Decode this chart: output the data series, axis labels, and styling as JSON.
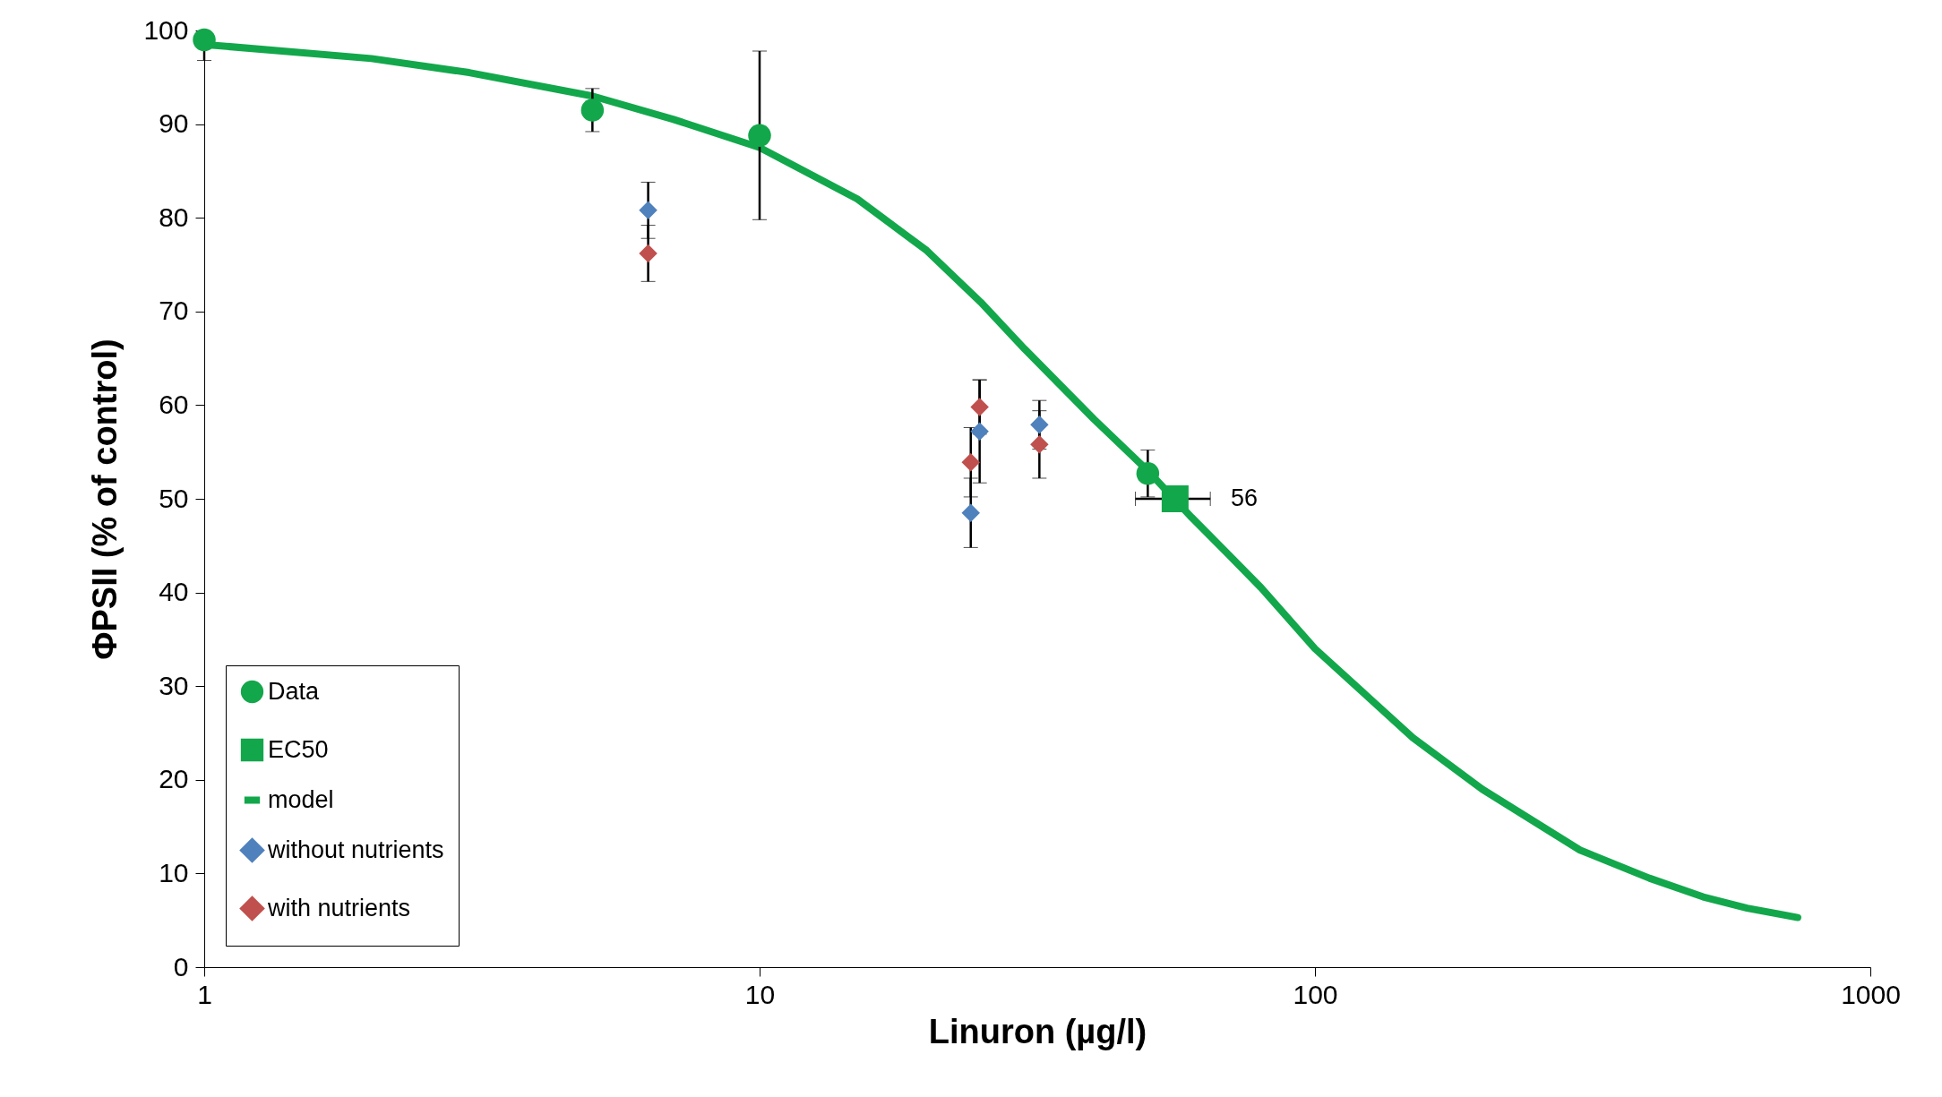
{
  "chart_data": {
    "type": "scatter",
    "xlabel": "Linuron (µg/l)",
    "ylabel": "ΦPSII (% of control)",
    "log": "x",
    "xlim": [
      1,
      1000
    ],
    "xticks": [
      1,
      10,
      100,
      1000
    ],
    "ylim": [
      0,
      100
    ],
    "yticks": [
      0,
      10,
      20,
      30,
      40,
      50,
      60,
      70,
      80,
      90,
      100
    ],
    "legend": "bottom left",
    "annotations": [
      {
        "text": "56",
        "x": 56,
        "y": 50
      }
    ],
    "series": [
      {
        "name": "Data",
        "type": "scatter",
        "marker": "circle",
        "color": "#13a74b",
        "x": [
          1,
          5,
          10,
          50
        ],
        "values": [
          99,
          91.5,
          88.8,
          52.7
        ],
        "errors": [
          [
            96.8,
            99
          ],
          2.3,
          9,
          2.5
        ]
      },
      {
        "name": "EC50",
        "type": "scatter",
        "marker": "square",
        "color": "#13a74b",
        "x": [
          56
        ],
        "values": [
          50
        ],
        "xerrors": [
          [
            47.5,
            64.8
          ]
        ]
      },
      {
        "name": "model",
        "type": "line",
        "marker": "none",
        "color": "#13a74b",
        "x": [
          1,
          2,
          3,
          5,
          7,
          10,
          15,
          20,
          25,
          30,
          40,
          50,
          60,
          70,
          80,
          100,
          150,
          200,
          300,
          400,
          500,
          600,
          740
        ],
        "values": [
          98.5,
          97,
          95.5,
          93,
          90.5,
          87.5,
          82,
          76.5,
          71,
          66,
          58.5,
          53,
          48,
          44,
          40.5,
          34,
          24.5,
          19,
          12.5,
          9.5,
          7.5,
          6.3,
          5.3
        ]
      },
      {
        "name": "without nutrients",
        "type": "scatter",
        "marker": "diamond",
        "color": "#4f81bd",
        "x": [
          6.3,
          24.9,
          24.0,
          31.9
        ],
        "values": [
          80.8,
          57.2,
          48.5,
          57.9
        ],
        "errors": [
          3,
          5.5,
          3.7,
          2.6
        ]
      },
      {
        "name": "with nutrients",
        "type": "scatter",
        "marker": "diamond",
        "color": "#c0504d",
        "x": [
          6.3,
          24.9,
          24.0,
          31.9
        ],
        "values": [
          76.2,
          59.8,
          53.9,
          55.8
        ],
        "errors": [
          3,
          2.9,
          3.7,
          3.6
        ]
      }
    ]
  }
}
